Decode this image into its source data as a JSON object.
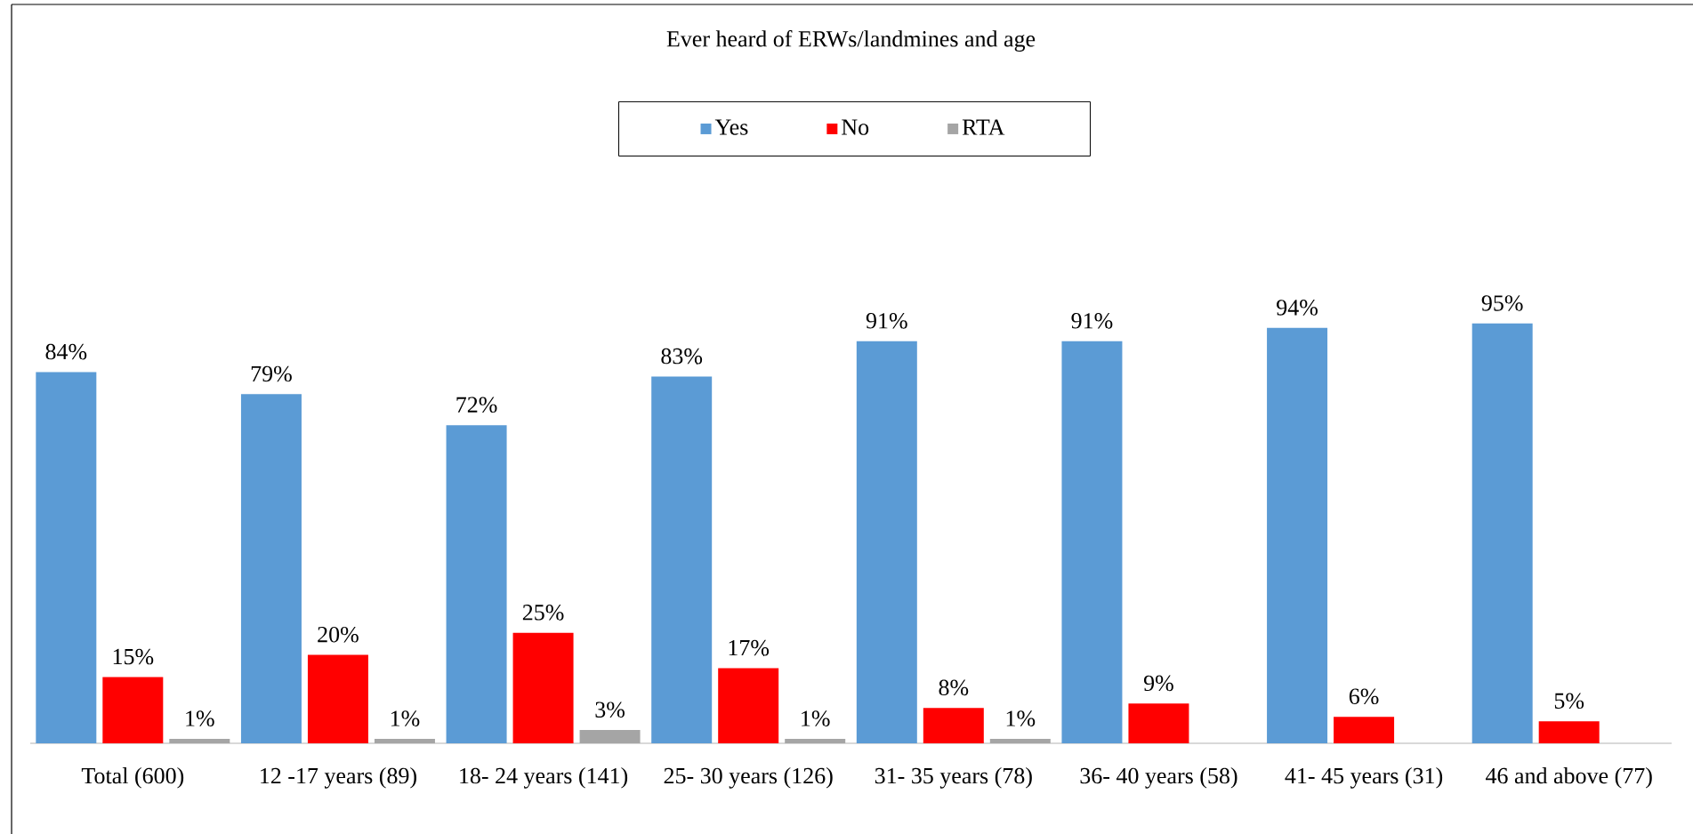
{
  "chart_data": {
    "type": "bar",
    "title": "Ever heard of ERWs/landmines and age",
    "categories": [
      "Total (600)",
      "12 -17 years (89)",
      "18- 24 years (141)",
      "25- 30 years (126)",
      "31- 35 years (78)",
      "36- 40 years (58)",
      "41- 45 years (31)",
      "46 and above (77)"
    ],
    "series": [
      {
        "name": "Yes",
        "color": "#5b9bd5",
        "values": [
          84,
          79,
          72,
          83,
          91,
          91,
          94,
          95
        ],
        "value_labels": [
          "84%",
          "79%",
          "72%",
          "83%",
          "91%",
          "91%",
          "94%",
          "95%"
        ]
      },
      {
        "name": "No",
        "color": "#ff0000",
        "values": [
          15,
          20,
          25,
          17,
          8,
          9,
          6,
          5
        ],
        "value_labels": [
          "15%",
          "20%",
          "25%",
          "17%",
          "8%",
          "9%",
          "6%",
          "5%"
        ]
      },
      {
        "name": "RTA",
        "color": "#a5a5a5",
        "values": [
          1,
          1,
          3,
          1,
          1,
          null,
          null,
          null
        ],
        "value_labels": [
          "1%",
          "1%",
          "3%",
          "1%",
          "1%",
          null,
          null,
          null
        ]
      }
    ],
    "legend": "top"
  }
}
